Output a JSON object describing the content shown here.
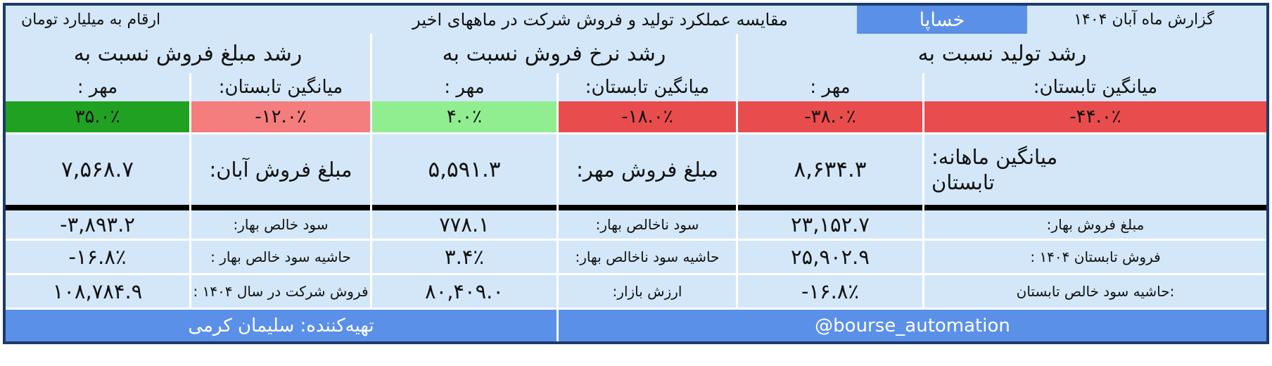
{
  "colors": {
    "accent_blue": "#5b90e8",
    "frame_navy": "#1c3a6b",
    "cell_bg": "#d3e7f8",
    "green_strong": "#21a121",
    "green_light": "#90ee90",
    "red_strong": "#e94c4c",
    "red_light": "#f47d7d"
  },
  "header": {
    "report_label": "گزارش ماه آبان ۱۴۰۴",
    "ticker": "خساپا",
    "title": "مقایسه عملکرد تولید و فروش شرکت در ماههای اخیر",
    "unit_note": "ارقام به میلیارد تومان"
  },
  "groups": [
    {
      "title": "رشد تولید نسبت به"
    },
    {
      "title": "رشد نرخ فروش نسبت به"
    },
    {
      "title": "رشد مبلغ فروش نسبت به"
    }
  ],
  "subheaders": [
    "میانگین تابستان:",
    "مهر :",
    "میانگین تابستان:",
    "مهر :",
    "میانگین تابستان:",
    "مهر :"
  ],
  "growth": [
    {
      "value": "-۴۴.۰٪",
      "bg": "#e94c4c"
    },
    {
      "value": "-۳۸.۰٪",
      "bg": "#e94c4c"
    },
    {
      "value": "-۱۸.۰٪",
      "bg": "#e94c4c"
    },
    {
      "value": "۴.۰٪",
      "bg": "#90ee90"
    },
    {
      "value": "-۱۲.۰٪",
      "bg": "#f47d7d"
    },
    {
      "value": "۳۵.۰٪",
      "bg": "#21a121"
    }
  ],
  "sales_row": {
    "avg_label_line1": "میانگین ماهانه:",
    "avg_label_line2": "تابستان",
    "avg_value": "۸,۶۳۴.۳",
    "mehr_label": "مبلغ فروش مهر:",
    "mehr_value": "۵,۵۹۱.۳",
    "aban_label": "مبلغ فروش آبان:",
    "aban_value": "۷,۵۶۸.۷"
  },
  "detail_rows": [
    {
      "cells": [
        {
          "v": "مبلغ فروش بهار:"
        },
        {
          "v": "۲۳,۱۵۲.۷"
        },
        {
          "v": "سود ناخالص بهار:"
        },
        {
          "v": "۷۷۸.۱"
        },
        {
          "v": "سود خالص بهار:"
        },
        {
          "v": "-۳,۸۹۳.۲"
        }
      ]
    },
    {
      "cells": [
        {
          "v": "فروش تابستان ۱۴۰۴ :"
        },
        {
          "v": "۲۵,۹۰۲.۹"
        },
        {
          "v": "حاشیه سود ناخالص بهار:"
        },
        {
          "v": "۳.۴٪"
        },
        {
          "v": "حاشیه سود خالص بهار :"
        },
        {
          "v": "-۱۶.۸٪"
        }
      ]
    },
    {
      "cells": [
        {
          "v": ":حاشیه سود خالص تابستان"
        },
        {
          "v": "-۱۶.۸٪"
        },
        {
          "v": "ارزش بازار:"
        },
        {
          "v": "۸۰,۴۰۹.۰"
        },
        {
          "v": "فروش شرکت در سال ۱۴۰۴ :"
        },
        {
          "v": "۱۰۸,۷۸۴.۹"
        }
      ]
    }
  ],
  "footer": {
    "channel": "@bourse_automation",
    "credit": "تهیه‌کننده: سلیمان کرمی"
  }
}
